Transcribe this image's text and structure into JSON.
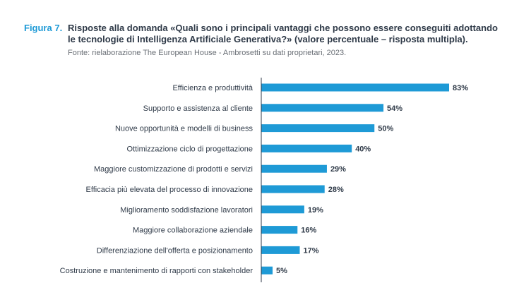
{
  "figure": {
    "label": "Figura 7.",
    "title": "Risposte alla domanda «Quali sono i principali vantaggi che possono essere conseguiti adottando le tecnologie di Intelligenza Artificiale Generativa?» (valore percentuale – risposta multipla).",
    "source": "Fonte: rielaborazione The European House - Ambrosetti su dati proprietari, 2023."
  },
  "colors": {
    "bar": "#1e9ad6",
    "axis": "#2f3a48",
    "figure_label": "#1e9ad6"
  },
  "chart_data": {
    "type": "bar",
    "orientation": "horizontal",
    "title": "Risposte alla domanda «Quali sono i principali vantaggi che possono essere conseguiti adottando le tecnologie di Intelligenza Artificiale Generativa?» (valore percentuale – risposta multipla).",
    "xlabel": "",
    "ylabel": "",
    "unit": "%",
    "xlim": [
      0,
      83
    ],
    "grid": false,
    "legend": "none",
    "categories": [
      "Efficienza e produttività",
      "Supporto e assistenza al cliente",
      "Nuove opportunità e modelli di business",
      "Ottimizzazione ciclo di progettazione",
      "Maggiore customizzazione di prodotti e servizi",
      "Efficacia più elevata del processo di innovazione",
      "Miglioramento soddisfazione lavoratori",
      "Maggiore collaborazione aziendale",
      "Differenziazione dell'offerta e posizionamento",
      "Costruzione e mantenimento di rapporti con stakeholder"
    ],
    "values": [
      83,
      54,
      50,
      40,
      29,
      28,
      19,
      16,
      17,
      5
    ],
    "value_labels": [
      "83%",
      "54%",
      "50%",
      "40%",
      "29%",
      "28%",
      "19%",
      "16%",
      "17%",
      "5%"
    ]
  }
}
